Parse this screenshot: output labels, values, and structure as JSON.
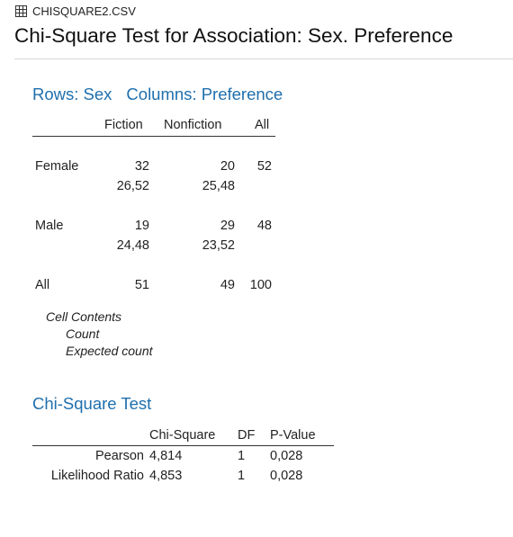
{
  "file": {
    "icon": "table-grid-icon",
    "name": "CHISQUARE2.CSV"
  },
  "title": "Chi-Square Test for Association: Sex. Preference",
  "tabulation": {
    "rows_label": "Rows: Sex",
    "columns_label": "Columns: Preference",
    "headers": [
      "Fiction",
      "Nonfiction",
      "All"
    ],
    "rows": [
      {
        "label": "Female",
        "count": [
          "32",
          "20",
          "52"
        ],
        "expected": [
          "26,52",
          "25,48"
        ]
      },
      {
        "label": "Male",
        "count": [
          "19",
          "29",
          "48"
        ],
        "expected": [
          "24,48",
          "23,52"
        ]
      },
      {
        "label": "All",
        "count": [
          "51",
          "49",
          "100"
        ]
      }
    ],
    "cell_contents": {
      "title": "Cell Contents",
      "items": [
        "Count",
        "Expected count"
      ]
    }
  },
  "chi_square": {
    "heading": "Chi-Square Test",
    "headers": [
      "Chi-Square",
      "DF",
      "P-Value"
    ],
    "rows": [
      {
        "label": "Pearson",
        "chi": "4,814",
        "df": "1",
        "p": "0,028"
      },
      {
        "label": "Likelihood Ratio",
        "chi": "4,853",
        "df": "1",
        "p": "0,028"
      }
    ]
  }
}
